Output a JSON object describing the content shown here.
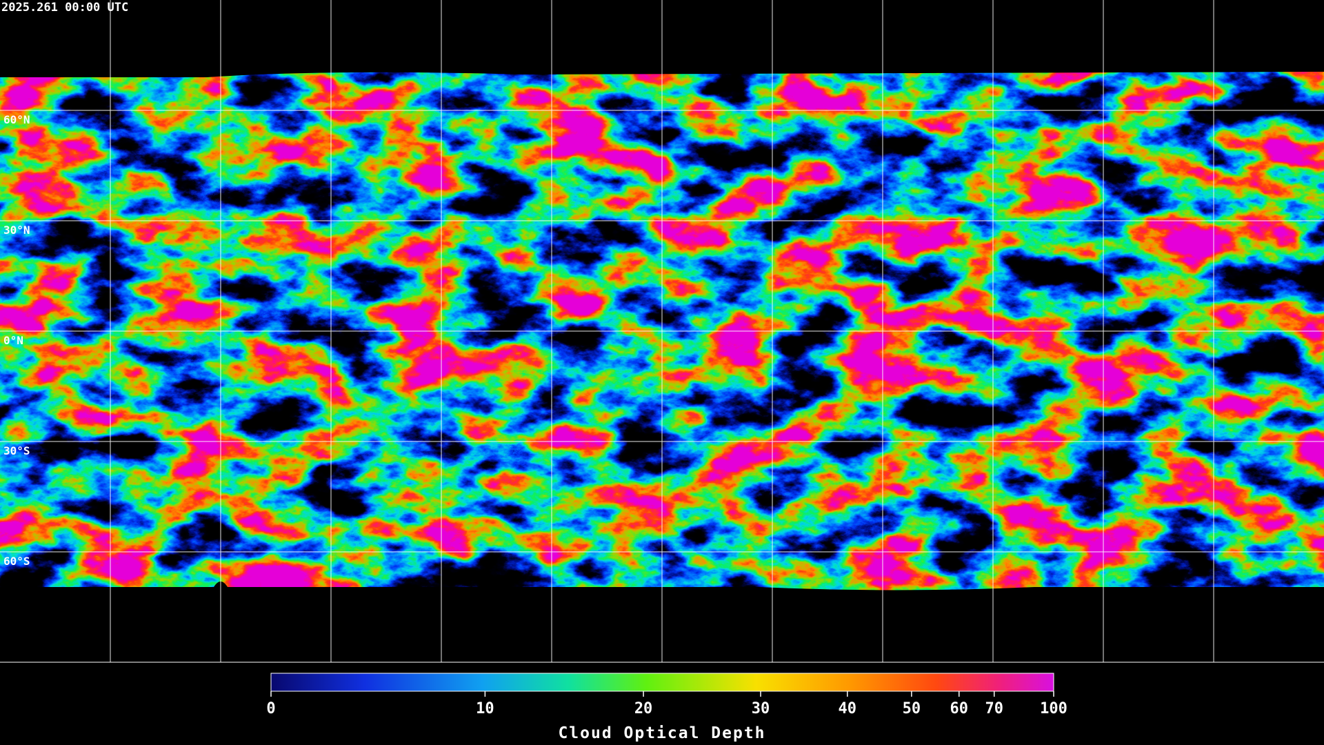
{
  "timestamp": "2025.261 00:00 UTC",
  "lat_labels": [
    "60°N",
    "30°N",
    "0°N",
    "30°S",
    "60°S"
  ],
  "colorbar": {
    "title": "Cloud Optical Depth",
    "range": [
      0,
      100
    ],
    "ticks": [
      0,
      10,
      20,
      30,
      40,
      50,
      60,
      70,
      100
    ]
  }
}
